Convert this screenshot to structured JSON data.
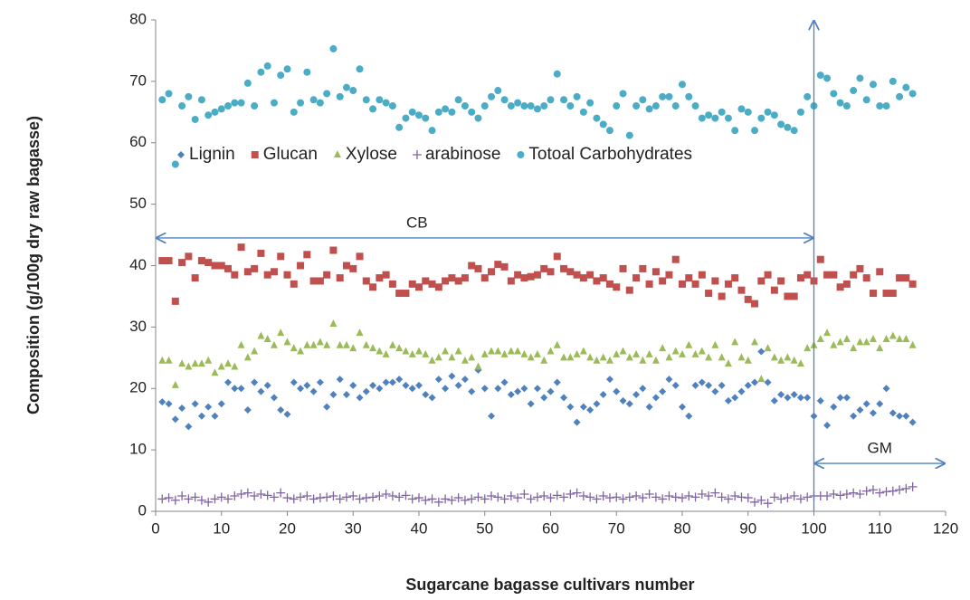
{
  "chart_data": {
    "type": "scatter",
    "xlabel": "Sugarcane bagasse cultivars number",
    "ylabel": "Composition (g/100g dry raw bagasse)",
    "xlim": [
      0,
      120
    ],
    "ylim": [
      0,
      80
    ],
    "xticks": [
      0,
      10,
      20,
      30,
      40,
      50,
      60,
      70,
      80,
      90,
      100,
      110,
      120
    ],
    "yticks": [
      0,
      10,
      20,
      30,
      40,
      50,
      60,
      70,
      80
    ],
    "grid": false,
    "legend": "top",
    "x": [
      1,
      2,
      3,
      4,
      5,
      6,
      7,
      8,
      9,
      10,
      11,
      12,
      13,
      14,
      15,
      16,
      17,
      18,
      19,
      20,
      21,
      22,
      23,
      24,
      25,
      26,
      27,
      28,
      29,
      30,
      31,
      32,
      33,
      34,
      35,
      36,
      37,
      38,
      39,
      40,
      41,
      42,
      43,
      44,
      45,
      46,
      47,
      48,
      49,
      50,
      51,
      52,
      53,
      54,
      55,
      56,
      57,
      58,
      59,
      60,
      61,
      62,
      63,
      64,
      65,
      66,
      67,
      68,
      69,
      70,
      71,
      72,
      73,
      74,
      75,
      76,
      77,
      78,
      79,
      80,
      81,
      82,
      83,
      84,
      85,
      86,
      87,
      88,
      89,
      90,
      91,
      92,
      93,
      94,
      95,
      96,
      97,
      98,
      99,
      100,
      101,
      102,
      103,
      104,
      105,
      106,
      107,
      108,
      109,
      110,
      111,
      112,
      113,
      114,
      115
    ],
    "series": [
      {
        "name": "Lignin",
        "color": "#4f81bd",
        "marker": "diamond",
        "values": [
          17.8,
          17.5,
          15,
          16.8,
          13.8,
          17.5,
          15.5,
          17,
          15.5,
          17.5,
          21,
          20,
          20,
          16.5,
          21,
          19.5,
          20.5,
          18.5,
          16.5,
          15.8,
          21,
          20,
          20.5,
          19.5,
          21,
          17,
          19,
          21.5,
          19,
          20.5,
          18.5,
          19.5,
          20.5,
          20,
          21,
          21,
          21.5,
          20.5,
          20,
          20.5,
          19,
          18.5,
          21.5,
          20,
          22,
          20.5,
          21.5,
          19.5,
          23,
          20,
          15.5,
          20,
          21,
          19,
          19.5,
          20,
          17.5,
          20,
          18.5,
          19.5,
          21,
          18.5,
          17,
          14.5,
          17,
          16.5,
          17.5,
          19,
          21.5,
          19.5,
          18,
          17.5,
          19,
          20,
          17,
          18.5,
          19.5,
          21.5,
          20.5,
          17,
          15.5,
          20.5,
          21,
          20.5,
          19.5,
          20.5,
          18,
          18.5,
          19.5,
          20.5,
          21,
          26,
          21,
          18,
          19,
          18.5,
          19,
          18.5,
          18.5,
          15.5,
          18,
          14,
          17,
          18.5,
          18.5,
          15.5,
          16.5,
          17.5,
          16,
          17.5,
          20,
          16,
          15.5,
          15.5,
          14.5
        ]
      },
      {
        "name": "Glucan",
        "color": "#c0504d",
        "marker": "square",
        "values": [
          40.8,
          40.8,
          34.2,
          40.5,
          41.5,
          38,
          40.8,
          40.5,
          40,
          40,
          39.5,
          38.5,
          43,
          39,
          39.5,
          42,
          38.5,
          39,
          41.5,
          38.5,
          37,
          40,
          41.8,
          37.5,
          37.5,
          38.5,
          42.5,
          38,
          40,
          39.5,
          41.5,
          37.5,
          36.5,
          38,
          38.5,
          37,
          35.5,
          35.5,
          37,
          36.5,
          37.5,
          37,
          36.5,
          37.5,
          38,
          37.5,
          38,
          40,
          39.5,
          38,
          39,
          40.2,
          39.8,
          37.5,
          38.5,
          38,
          38.2,
          38.5,
          39.5,
          39,
          41.5,
          39.5,
          39,
          38.5,
          38,
          38.5,
          37.5,
          38,
          37,
          36.5,
          39.5,
          36,
          38,
          39.5,
          37,
          39,
          37.5,
          38.5,
          41,
          37,
          38,
          37,
          38.5,
          35.5,
          37.5,
          35,
          37,
          38,
          36,
          34.5,
          33.8,
          37.5,
          38.5,
          36,
          37.5,
          35,
          35,
          38,
          38.5,
          37.5,
          41,
          38.5,
          38.5,
          36.5,
          37,
          38.5,
          39.5,
          38,
          35.5,
          39,
          35.5,
          35.5,
          38,
          38,
          37
        ]
      },
      {
        "name": "Xylose",
        "color": "#9bbb59",
        "marker": "triangle",
        "values": [
          24.5,
          24.5,
          20.5,
          24,
          23.5,
          24,
          24,
          24.5,
          22.5,
          23.5,
          24,
          23.5,
          27,
          25,
          26,
          28.5,
          28,
          27,
          29,
          27.5,
          26.5,
          26,
          27,
          27,
          27.5,
          27,
          30.5,
          27,
          27,
          26.5,
          29,
          27,
          26.5,
          26,
          25.5,
          27,
          26.5,
          26,
          25.5,
          26,
          25.5,
          24.5,
          25,
          26,
          25,
          26,
          24.5,
          25,
          23.5,
          25.5,
          26,
          26,
          25.5,
          26,
          26,
          25.5,
          25,
          25.5,
          24.5,
          26,
          27,
          25,
          25,
          25.5,
          26,
          25,
          24.5,
          25,
          24.5,
          25.5,
          26,
          25,
          25.5,
          24.5,
          25.5,
          24.5,
          26.5,
          25,
          26,
          25.5,
          27,
          25.5,
          26,
          25,
          27,
          25,
          24,
          27.5,
          25,
          24.5,
          27.5,
          21.5,
          26.5,
          25,
          24.5,
          25,
          24.5,
          24,
          26.5,
          27,
          28,
          29,
          27,
          27.5,
          28,
          26.5,
          27.5,
          27.5,
          28,
          26.5,
          28,
          28.5,
          28,
          28,
          27
        ]
      },
      {
        "name": "arabinose",
        "color": "#8064a2",
        "marker": "plus",
        "values": [
          2,
          2.2,
          1.8,
          2.5,
          2,
          2.3,
          1.8,
          1.5,
          2,
          2.3,
          2,
          2.5,
          2.8,
          3,
          2.5,
          2.8,
          2.6,
          2.3,
          3,
          2.2,
          2,
          2.3,
          2.5,
          2,
          2.2,
          2.3,
          2.5,
          2,
          2.3,
          2.5,
          2,
          2.2,
          2.3,
          2.5,
          2.8,
          2.5,
          2.3,
          2.6,
          2,
          2.2,
          1.8,
          2,
          1.5,
          2,
          1.8,
          2.2,
          1.8,
          2,
          2.3,
          2,
          2.5,
          2.3,
          2,
          2.5,
          2.2,
          2.8,
          2,
          2.3,
          2.5,
          2.2,
          2.6,
          2.3,
          2.8,
          3,
          2.5,
          2.3,
          2,
          2.5,
          2.2,
          2.3,
          2,
          2.3,
          2.5,
          2.2,
          2.8,
          2.3,
          2,
          2.5,
          2.3,
          2.2,
          2.5,
          2.3,
          2.8,
          2.5,
          3,
          2.3,
          2,
          2.5,
          2.3,
          2.2,
          1.5,
          1.8,
          1.3,
          2.3,
          2,
          2.2,
          2.5,
          2,
          2.3,
          2.5,
          2.5,
          2.5,
          2.8,
          2.6,
          2.8,
          3,
          2.8,
          3.3,
          3.5,
          3,
          3.2,
          3.3,
          3.5,
          3.7,
          4
        ]
      },
      {
        "name": "Totoal Carbohydrates",
        "color": "#4bacc6",
        "marker": "circle",
        "values": [
          67,
          68,
          56.5,
          66,
          67.5,
          63.8,
          67,
          64.5,
          65,
          65.5,
          66,
          66.5,
          66.5,
          69.7,
          66,
          71.5,
          72.5,
          66.5,
          71,
          72,
          65,
          66.5,
          71.5,
          67,
          66.5,
          68,
          75.3,
          67.5,
          69,
          68.5,
          72,
          67,
          65.5,
          67,
          66.5,
          66,
          62.5,
          64,
          65,
          64.5,
          64,
          62,
          65,
          65.5,
          65,
          67,
          66,
          65,
          64,
          66,
          67.5,
          68.5,
          67,
          66,
          66.5,
          66,
          66,
          65.5,
          66,
          67,
          71.2,
          67,
          66,
          67.5,
          65,
          66.5,
          64,
          63,
          62,
          66,
          68,
          61.2,
          66,
          67,
          65.5,
          66,
          67.5,
          67.5,
          66,
          69.5,
          67.5,
          66,
          64,
          64.5,
          64,
          65,
          64,
          62,
          65.5,
          65,
          62,
          64,
          65,
          64.5,
          63,
          62.5,
          62,
          65,
          67.5,
          66,
          71,
          70.5,
          68,
          66.5,
          66,
          68.5,
          70.5,
          67,
          69.5,
          66,
          66,
          70,
          67.5,
          69,
          68
        ]
      }
    ],
    "annotations": [
      {
        "text": "CB",
        "x_range": [
          0,
          100
        ],
        "y": 44.5
      },
      {
        "text": "GM",
        "x_range": [
          100,
          120
        ],
        "y": 7.8
      }
    ],
    "vline": {
      "x": 100
    }
  }
}
